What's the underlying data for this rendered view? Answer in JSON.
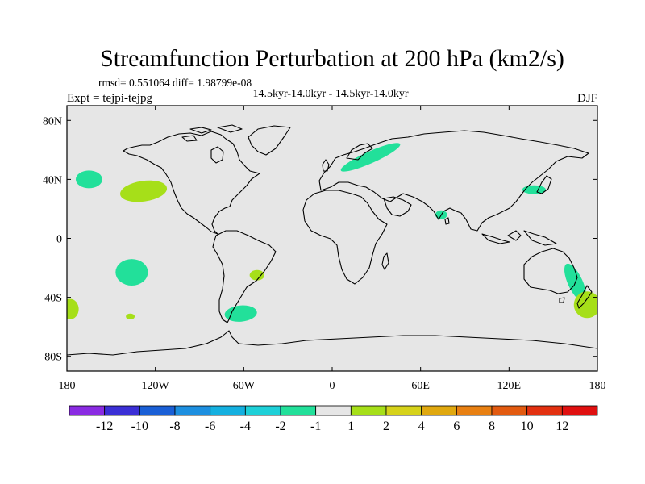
{
  "chart_data": {
    "type": "map-contour",
    "title": "Streamfunction Perturbation at 200 hPa (km2/s)",
    "stats": "rmsd= 0.551064 diff= 1.98799e-08",
    "subtitle": "14.5kyr-14.0kyr - 14.5kyr-14.0kyr",
    "left_label": "Expt = tejpi-tejpg",
    "season": "DJF",
    "lon_range": [
      -180,
      180
    ],
    "lat_range": [
      -90,
      90
    ],
    "lon_ticks": [
      {
        "v": -180,
        "label": "180"
      },
      {
        "v": -120,
        "label": "120W"
      },
      {
        "v": -60,
        "label": "60W"
      },
      {
        "v": 0,
        "label": "0"
      },
      {
        "v": 60,
        "label": "60E"
      },
      {
        "v": 120,
        "label": "120E"
      },
      {
        "v": 180,
        "label": "180"
      }
    ],
    "lat_ticks": [
      {
        "v": 80,
        "label": "80N"
      },
      {
        "v": 40,
        "label": "40N"
      },
      {
        "v": 0,
        "label": "0"
      },
      {
        "v": -40,
        "label": "40S"
      },
      {
        "v": -80,
        "label": "80S"
      }
    ],
    "colorbar": {
      "colors": [
        "#8a2be2",
        "#3b2fd6",
        "#1a5fd6",
        "#1d8fe0",
        "#14b0e0",
        "#1ed0d8",
        "#22e09a",
        "#e6e6e6",
        "#a6df19",
        "#d6d21a",
        "#e0a80f",
        "#e88012",
        "#e25a10",
        "#e23010",
        "#e01010"
      ],
      "levels": [
        {
          "v": -12,
          "label": "-12"
        },
        {
          "v": -10,
          "label": "-10"
        },
        {
          "v": -8,
          "label": "-8"
        },
        {
          "v": -6,
          "label": "-6"
        },
        {
          "v": -4,
          "label": "-4"
        },
        {
          "v": -2,
          "label": "-2"
        },
        {
          "v": -1,
          "label": "-1"
        },
        {
          "v": 1,
          "label": "1"
        },
        {
          "v": 2,
          "label": "2"
        },
        {
          "v": 4,
          "label": "4"
        },
        {
          "v": 6,
          "label": "6"
        },
        {
          "v": 8,
          "label": "8"
        },
        {
          "v": 10,
          "label": "10"
        },
        {
          "v": 12,
          "label": "12"
        }
      ]
    },
    "anomalies": [
      {
        "name": "n-pacific-neg",
        "lon": -165,
        "lat": 40,
        "rlon": 9,
        "rlat": 6,
        "rot": 0,
        "bin": "-2 to -1"
      },
      {
        "name": "ne-pacific-pos",
        "lon": -128,
        "lat": 32,
        "rlon": 16,
        "rlat": 7,
        "rot": -8,
        "bin": "1 to 2"
      },
      {
        "name": "europe-neg",
        "lon": 26,
        "lat": 55,
        "rlon": 22,
        "rlat": 4,
        "rot": -24,
        "bin": "-2 to -1"
      },
      {
        "name": "india-neg",
        "lon": 74,
        "lat": 16,
        "rlon": 4,
        "rlat": 3,
        "rot": 0,
        "bin": "-2 to -1"
      },
      {
        "name": "japan-neg",
        "lon": 137,
        "lat": 33,
        "rlon": 8,
        "rlat": 3,
        "rot": 0,
        "bin": "-2 to -1"
      },
      {
        "name": "se-pacific-neg",
        "lon": -136,
        "lat": -23,
        "rlon": 11,
        "rlat": 9,
        "rot": 0,
        "bin": "-2 to -1"
      },
      {
        "name": "s-atlantic-pos",
        "lon": -51,
        "lat": -25,
        "rlon": 5,
        "rlat": 3.5,
        "rot": 0,
        "bin": "1 to 2"
      },
      {
        "name": "patagonia-neg",
        "lon": -62,
        "lat": -51,
        "rlon": 11,
        "rlat": 5.5,
        "rot": -5,
        "bin": "-2 to -1"
      },
      {
        "name": "s-pacific-small-pos",
        "lon": -137,
        "lat": -53,
        "rlon": 3,
        "rlat": 2,
        "rot": 0,
        "bin": "1 to 2"
      },
      {
        "name": "dateline-west-pos",
        "lon": -178,
        "lat": -48,
        "rlon": 6,
        "rlat": 7,
        "rot": 0,
        "bin": "1 to 2"
      },
      {
        "name": "se-australia-neg",
        "lon": 165,
        "lat": -30,
        "rlon": 5,
        "rlat": 14,
        "rot": -25,
        "bin": "-2 to -1"
      },
      {
        "name": "nz-pos",
        "lon": 173,
        "lat": -45,
        "rlon": 9,
        "rlat": 9,
        "rot": 0,
        "bin": "1 to 2"
      }
    ],
    "colors": {
      "ocean": "#e6e6e6",
      "neg_fill": "#22e09a",
      "pos_fill": "#a6df19",
      "coast": "#000000"
    }
  }
}
